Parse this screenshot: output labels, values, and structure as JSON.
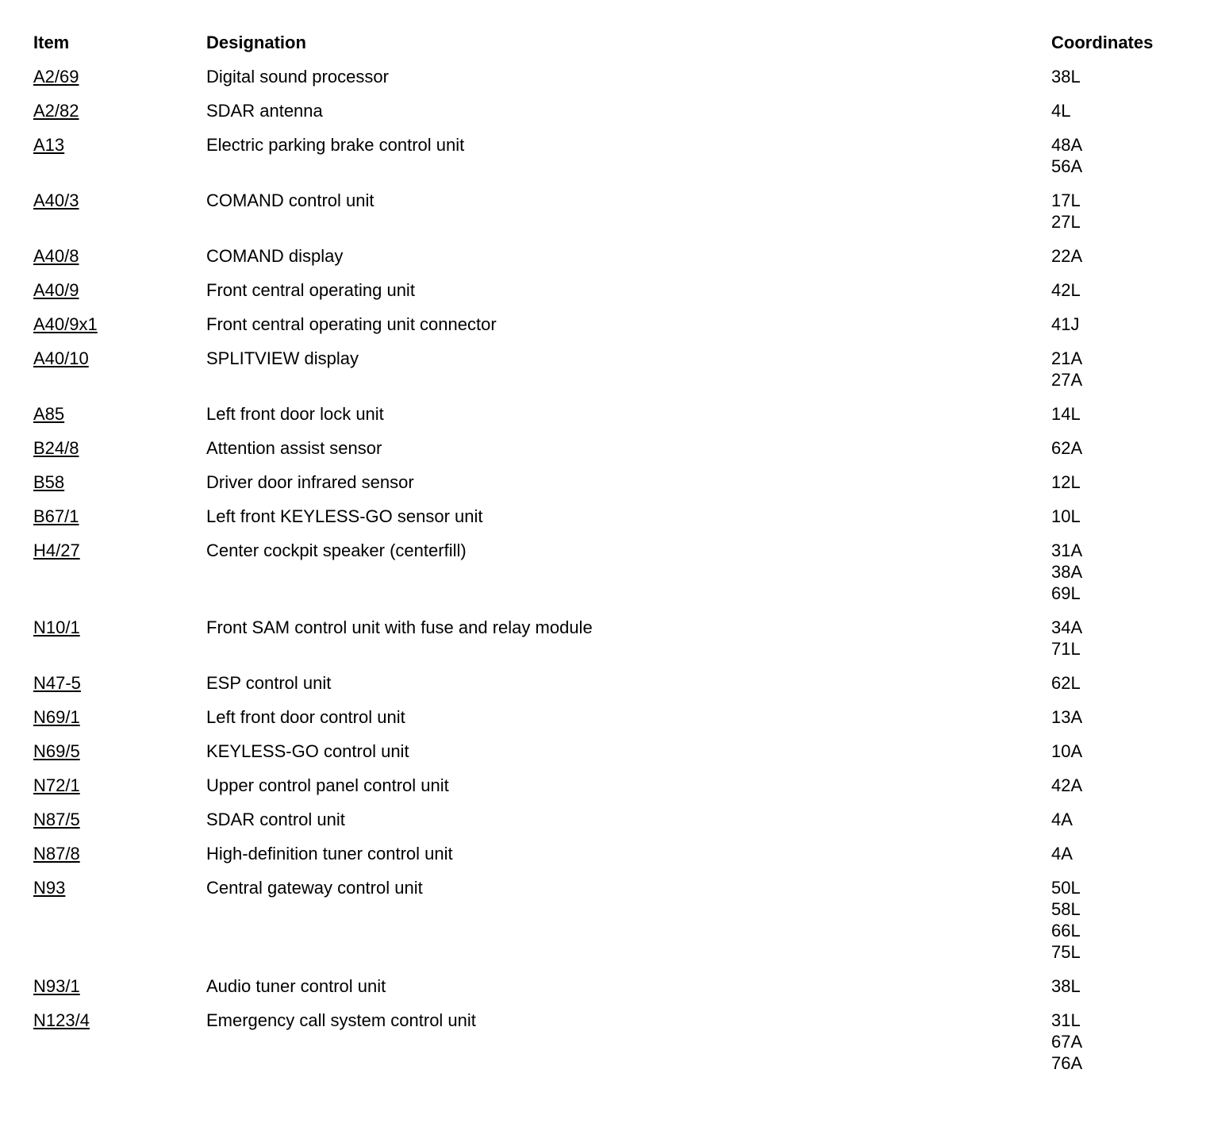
{
  "page": {
    "background": "#ffffff",
    "text_color": "#000000"
  },
  "table": {
    "headers": {
      "item": "Item",
      "designation": "Designation",
      "coordinates": "Coordinates"
    },
    "rows": [
      {
        "item": "A2/69",
        "designation": "Digital sound processor",
        "coordinates": [
          "38L"
        ]
      },
      {
        "item": "A2/82",
        "designation": "SDAR antenna",
        "coordinates": [
          "4L"
        ]
      },
      {
        "item": "A13",
        "designation": "Electric parking brake control unit",
        "coordinates": [
          "48A",
          "56A"
        ]
      },
      {
        "item": "A40/3",
        "designation": "COMAND control unit",
        "coordinates": [
          "17L",
          "27L"
        ]
      },
      {
        "item": "A40/8",
        "designation": "COMAND display",
        "coordinates": [
          "22A"
        ]
      },
      {
        "item": "A40/9",
        "designation": "Front central operating unit",
        "coordinates": [
          "42L"
        ]
      },
      {
        "item": "A40/9x1",
        "designation": "Front central operating unit connector",
        "coordinates": [
          "41J"
        ]
      },
      {
        "item": "A40/10",
        "designation": "SPLITVIEW display",
        "coordinates": [
          "21A",
          "27A"
        ]
      },
      {
        "item": "A85",
        "designation": "Left front door lock unit",
        "coordinates": [
          "14L"
        ]
      },
      {
        "item": "B24/8",
        "designation": "Attention assist sensor",
        "coordinates": [
          "62A"
        ]
      },
      {
        "item": "B58",
        "designation": "Driver door infrared sensor",
        "coordinates": [
          "12L"
        ]
      },
      {
        "item": "B67/1",
        "designation": "Left front KEYLESS-GO sensor unit",
        "coordinates": [
          "10L"
        ]
      },
      {
        "item": "H4/27",
        "designation": "Center cockpit speaker (centerfill)",
        "coordinates": [
          "31A",
          "38A",
          "69L"
        ]
      },
      {
        "item": "N10/1",
        "designation": "Front SAM control unit with fuse and relay module",
        "coordinates": [
          "34A",
          "71L"
        ]
      },
      {
        "item": "N47-5",
        "designation": "ESP control unit",
        "coordinates": [
          "62L"
        ]
      },
      {
        "item": "N69/1",
        "designation": "Left front door control unit",
        "coordinates": [
          "13A"
        ]
      },
      {
        "item": "N69/5",
        "designation": "KEYLESS-GO control unit",
        "coordinates": [
          "10A"
        ]
      },
      {
        "item": "N72/1",
        "designation": "Upper control panel control unit",
        "coordinates": [
          "42A"
        ]
      },
      {
        "item": "N87/5",
        "designation": "SDAR control unit",
        "coordinates": [
          "4A"
        ]
      },
      {
        "item": "N87/8",
        "designation": "High-definition tuner control unit",
        "coordinates": [
          "4A"
        ]
      },
      {
        "item": "N93",
        "designation": "Central gateway control unit",
        "coordinates": [
          "50L",
          "58L",
          "66L",
          "75L"
        ]
      },
      {
        "item": "N93/1",
        "designation": "Audio tuner control unit",
        "coordinates": [
          "38L"
        ]
      },
      {
        "item": "N123/4",
        "designation": "Emergency call system control unit",
        "coordinates": [
          "31L",
          "67A",
          "76A"
        ]
      }
    ]
  }
}
